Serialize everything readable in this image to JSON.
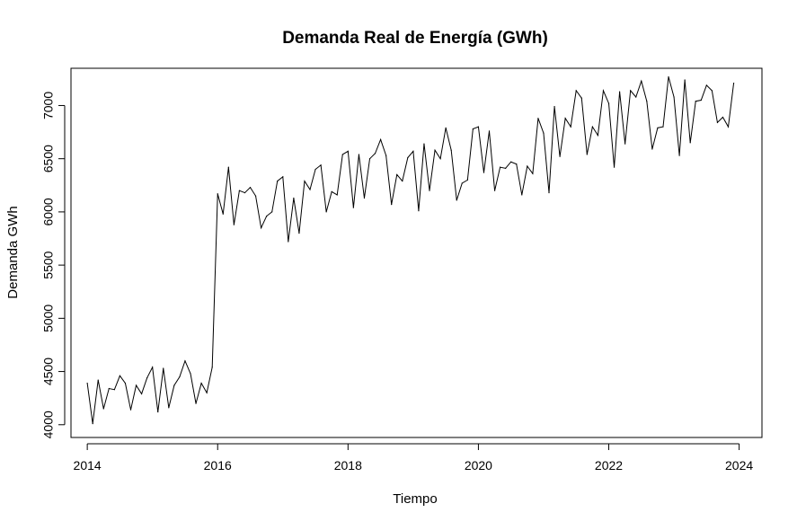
{
  "chart_data": {
    "type": "line",
    "title": "Demanda Real de Energía (GWh)",
    "xlabel": "Tiempo",
    "ylabel": "Demanda GWh",
    "xlim": [
      2013.75,
      2024.35
    ],
    "ylim": [
      3880,
      7350
    ],
    "x_ticks": [
      2014,
      2016,
      2018,
      2020,
      2022,
      2024
    ],
    "y_ticks": [
      4000,
      4500,
      5000,
      5500,
      6000,
      6500,
      7000
    ],
    "grid": false,
    "legend": "none",
    "line_color": "#000000",
    "x_start": 2014,
    "x_step_months": 1,
    "series": [
      {
        "values": [
          4390,
          4010,
          4420,
          4150,
          4340,
          4330,
          4460,
          4390,
          4140,
          4370,
          4290,
          4440,
          4540,
          4120,
          4530,
          4160,
          4370,
          4450,
          4600,
          4480,
          4200,
          4390,
          4300,
          4540,
          6170,
          5980,
          6420,
          5880,
          6200,
          6180,
          6230,
          6150,
          5850,
          5960,
          6000,
          6290,
          6330,
          5720,
          6130,
          5800,
          6290,
          6210,
          6400,
          6440,
          6000,
          6190,
          6160,
          6540,
          6570,
          6040,
          6540,
          6130,
          6500,
          6550,
          6680,
          6530,
          6070,
          6350,
          6290,
          6510,
          6570,
          6010,
          6640,
          6200,
          6580,
          6500,
          6790,
          6580,
          6110,
          6270,
          6300,
          6780,
          6800,
          6370,
          6760,
          6200,
          6420,
          6410,
          6470,
          6450,
          6160,
          6430,
          6360,
          6880,
          6740,
          6180,
          6990,
          6520,
          6880,
          6800,
          7140,
          7070,
          6540,
          6800,
          6720,
          7140,
          7020,
          6420,
          7130,
          6640,
          7140,
          7080,
          7230,
          7040,
          6590,
          6790,
          6800,
          7270,
          7080,
          6530,
          7240,
          6650,
          7040,
          7050,
          7190,
          7140,
          6840,
          6890,
          6800,
          7210
        ]
      }
    ]
  }
}
